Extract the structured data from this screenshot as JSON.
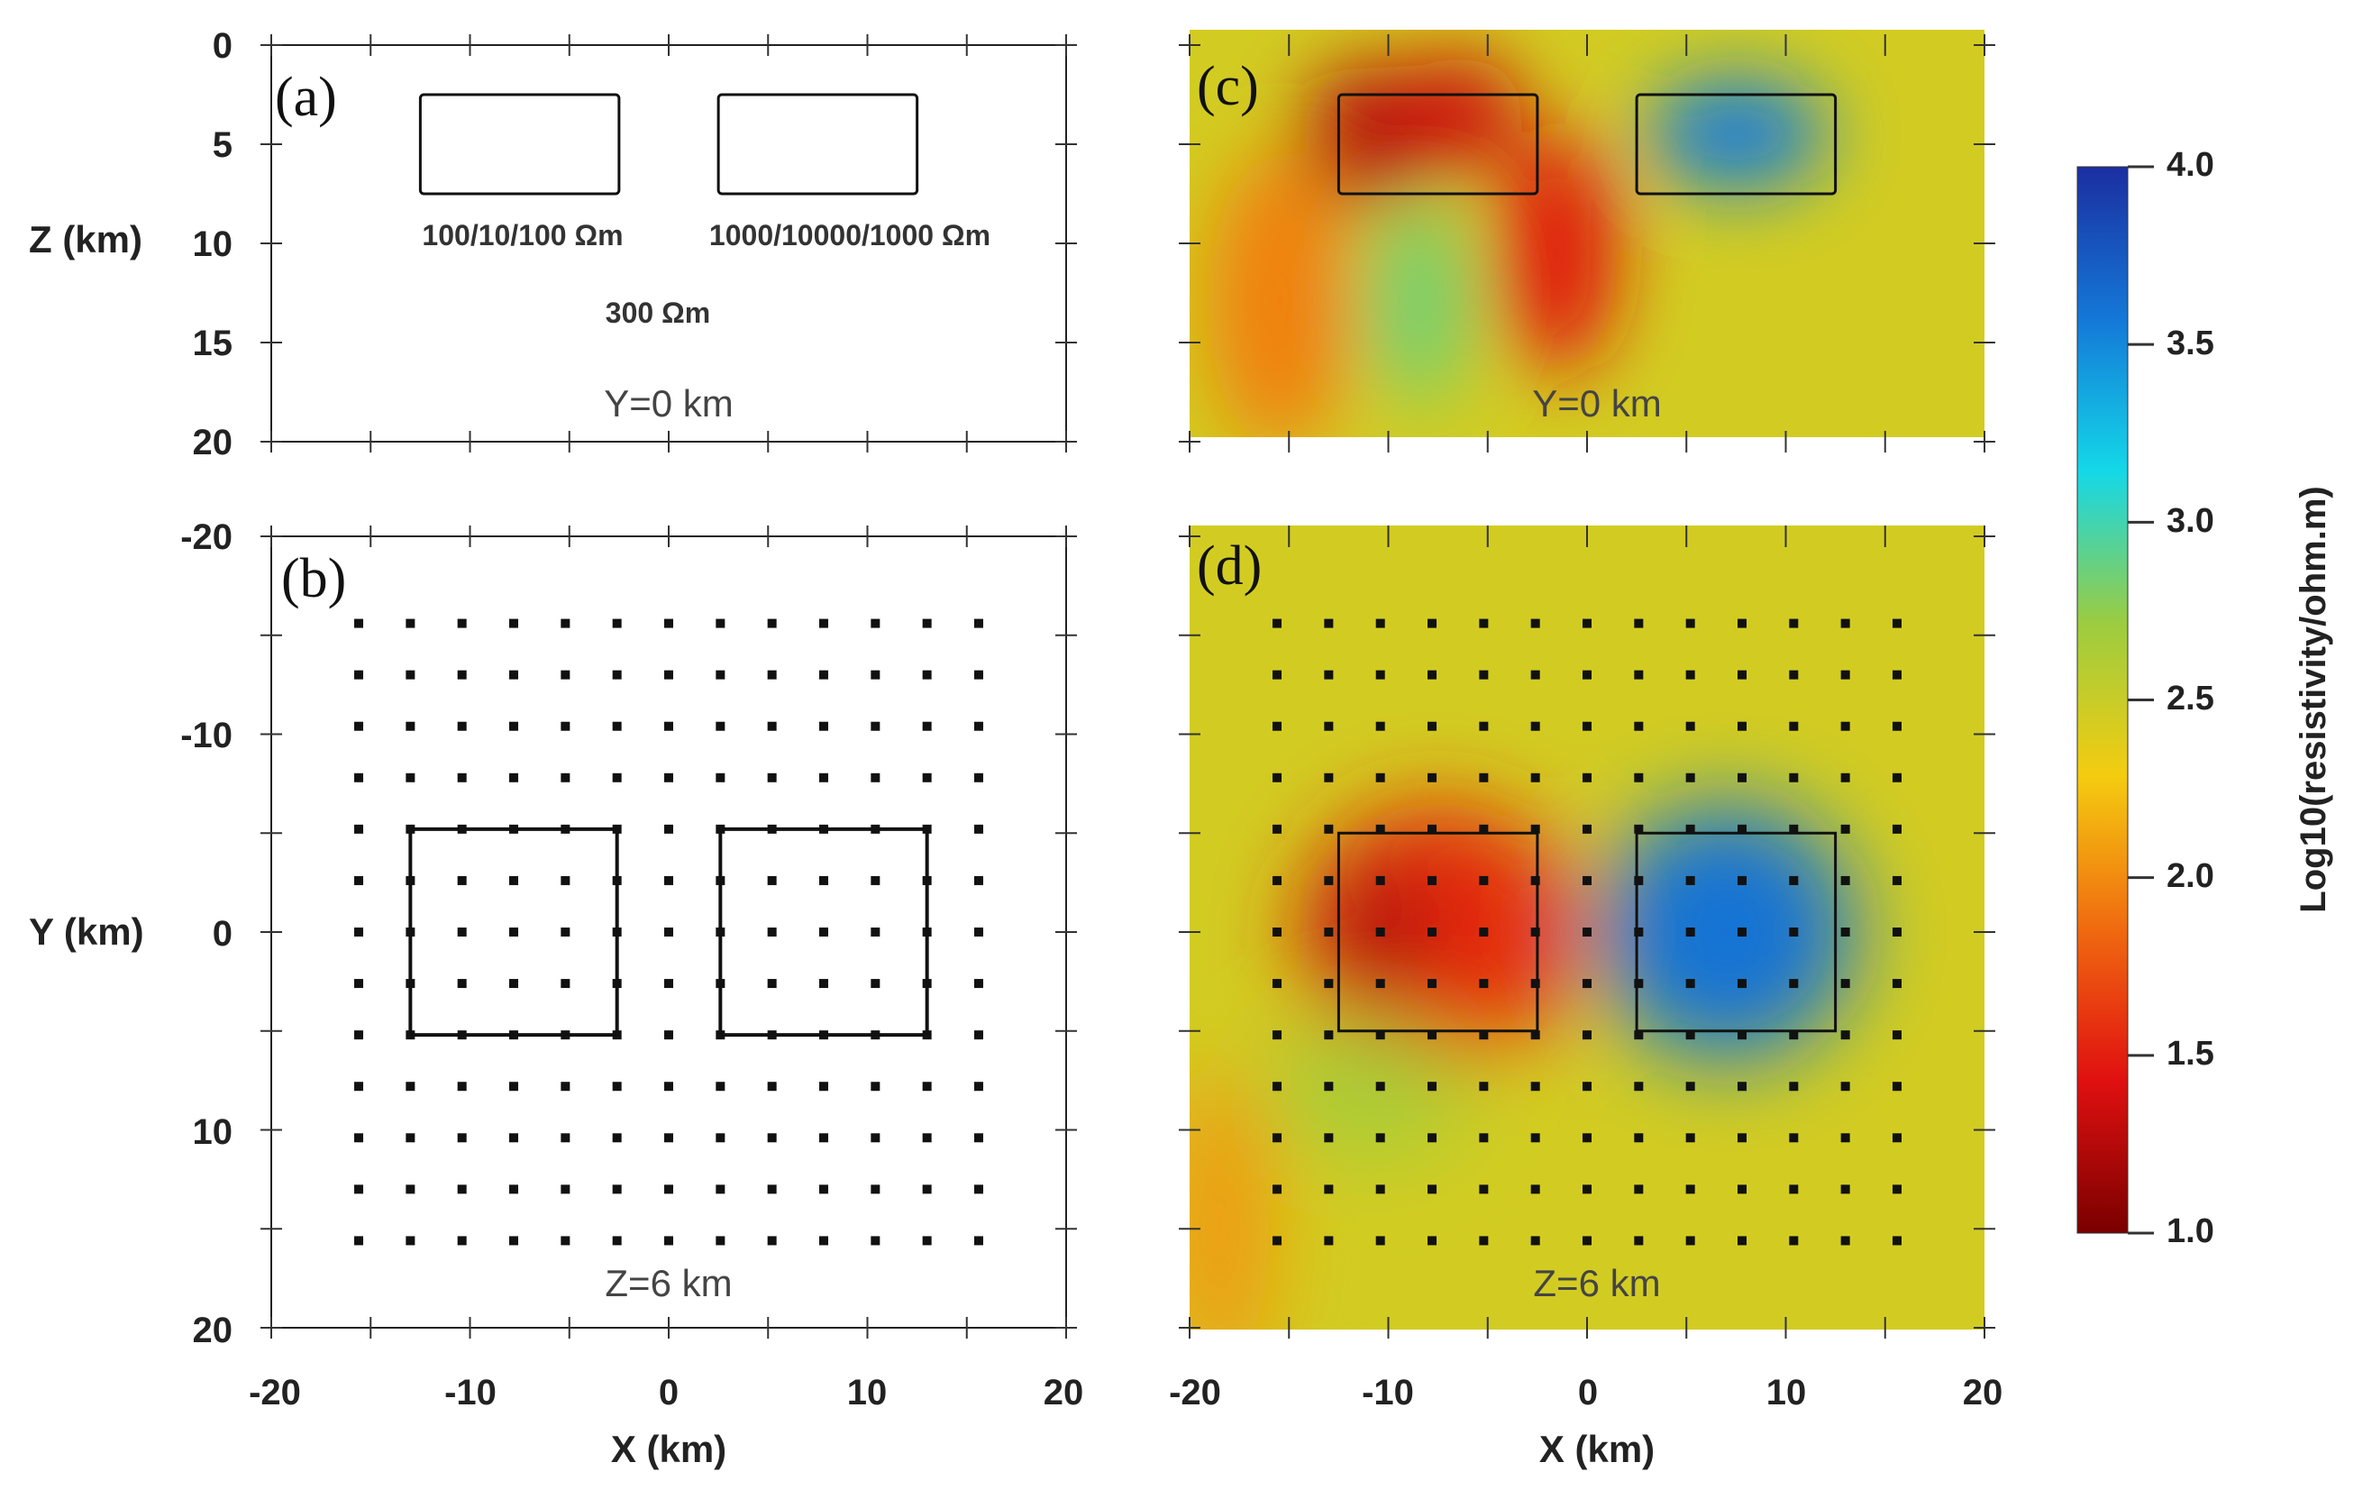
{
  "chart_data": [
    {
      "id": "a",
      "type": "section",
      "panel_label": "(a)",
      "section_label": "Y=0 km",
      "xlim": [
        -20,
        20
      ],
      "ylim": [
        0,
        20
      ],
      "y_inverted": true,
      "yticks": [
        0,
        5,
        10,
        15,
        20
      ],
      "ylabel": "Z (km)",
      "blocks": [
        {
          "x0": -12.5,
          "x1": -2.5,
          "z0": 2.5,
          "z1": 7.5,
          "label": "100/10/100 Ωm"
        },
        {
          "x0": 2.5,
          "x1": 12.5,
          "z0": 2.5,
          "z1": 7.5,
          "label": "1000/10000/1000 Ωm"
        }
      ],
      "background_label": "300 Ωm"
    },
    {
      "id": "b",
      "type": "scatter",
      "panel_label": "(b)",
      "section_label": "Z=6 km",
      "xlim": [
        -20,
        20
      ],
      "ylim": [
        -20,
        20
      ],
      "xticks": [
        -20,
        -10,
        0,
        10,
        20
      ],
      "yticks": [
        -20,
        -10,
        0,
        10,
        20
      ],
      "ytick_labels": [
        "-20",
        "-10",
        "0",
        "10",
        "20"
      ],
      "xlabel": "X (km)",
      "ylabel": "Y (km)",
      "stations": {
        "x_start": -15.6,
        "x_step": 2.6,
        "count_x": 13,
        "y_start": -15.6,
        "y_step": 2.6,
        "count_y": 13
      },
      "blocks": [
        {
          "x0": -13,
          "x1": -2.6,
          "y0": -5.2,
          "y1": 5.2
        },
        {
          "x0": 2.6,
          "x1": 13,
          "y0": -5.2,
          "y1": 5.2
        }
      ]
    },
    {
      "id": "c",
      "type": "heatmap",
      "panel_label": "(c)",
      "section_label": "Y=0 km",
      "xlim": [
        -20,
        20
      ],
      "ylim": [
        0,
        20
      ],
      "background_log10": 2.45,
      "blocks": [
        {
          "x0": -12.5,
          "x1": -2.5,
          "z0": 2.5,
          "z1": 7.5
        },
        {
          "x0": 2.5,
          "x1": 12.5,
          "z0": 2.5,
          "z1": 7.5
        }
      ],
      "anomalies": [
        {
          "x": -11,
          "z": 4.5,
          "rx": 3.2,
          "rz": 3.5,
          "log10": 1.25
        },
        {
          "x": -6.5,
          "z": 3.5,
          "rx": 3.2,
          "rz": 3.0,
          "log10": 1.35
        },
        {
          "x": -1.5,
          "z": 10.5,
          "rx": 3.0,
          "rz": 6.0,
          "log10": 1.45
        },
        {
          "x": -15.5,
          "z": 13,
          "rx": 3.5,
          "rz": 7.5,
          "log10": 1.95
        },
        {
          "x": -8.5,
          "z": 13,
          "rx": 2.5,
          "rz": 5.0,
          "log10": 2.85
        },
        {
          "x": 7.5,
          "z": 4.5,
          "rx": 4.5,
          "rz": 2.8,
          "log10": 3.55
        }
      ]
    },
    {
      "id": "d",
      "type": "heatmap",
      "panel_label": "(d)",
      "section_label": "Z=6 km",
      "xlim": [
        -20,
        20
      ],
      "ylim": [
        -20,
        20
      ],
      "xticks": [
        -20,
        -10,
        0,
        10,
        20
      ],
      "xlabel": "X (km)",
      "background_log10": 2.45,
      "stations": {
        "x_start": -15.6,
        "x_step": 2.6,
        "count_x": 13,
        "y_start": -15.6,
        "y_step": 2.6,
        "count_y": 13
      },
      "blocks": [
        {
          "x0": -12.5,
          "x1": -2.5,
          "y0": -5,
          "y1": 5
        },
        {
          "x0": 2.5,
          "x1": 12.5,
          "y0": -5,
          "y1": 5
        }
      ],
      "anomalies": [
        {
          "x": -7.5,
          "y": 0,
          "rx": 7.0,
          "ry": 6.5,
          "log10": 1.55
        },
        {
          "x": -10.5,
          "y": 0,
          "rx": 2.5,
          "ry": 3.5,
          "log10": 1.2
        },
        {
          "x": 7,
          "y": 0,
          "rx": 6.5,
          "ry": 6.5,
          "log10": 3.6
        },
        {
          "x": -18.5,
          "y": 15,
          "rx": 2.5,
          "ry": 8,
          "log10": 2.05
        },
        {
          "x": -11,
          "y": 8,
          "rx": 5.0,
          "ry": 3.5,
          "log10": 2.65
        }
      ]
    }
  ],
  "colorbar": {
    "title": "Log10(resistivity/ohm.m)",
    "min": 1.0,
    "max": 4.0,
    "ticks": [
      "1.0",
      "1.5",
      "2.0",
      "2.5",
      "3.0",
      "3.5",
      "4.0"
    ],
    "stops": [
      "#7a0000",
      "#e01010",
      "#f06a10",
      "#f4cc10",
      "#9ccc40",
      "#14d8e8",
      "#1478d8",
      "#1b2ea0"
    ]
  }
}
